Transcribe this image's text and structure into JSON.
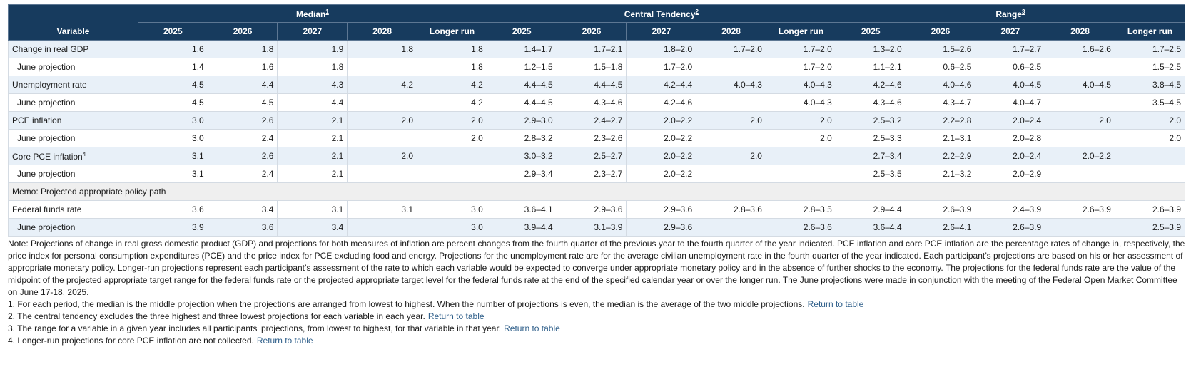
{
  "headers": {
    "variable": "Variable",
    "groups": [
      {
        "label": "Median",
        "note": "1"
      },
      {
        "label": "Central Tendency",
        "note": "2"
      },
      {
        "label": "Range",
        "note": "3"
      }
    ],
    "years": [
      "2025",
      "2026",
      "2027",
      "2028",
      "Longer run"
    ]
  },
  "rows": [
    {
      "label": "Change in real GDP",
      "note": "",
      "cells": [
        "1.6",
        "1.8",
        "1.9",
        "1.8",
        "1.8",
        "1.4–1.7",
        "1.7–2.1",
        "1.8–2.0",
        "1.7–2.0",
        "1.7–2.0",
        "1.3–2.0",
        "1.5–2.6",
        "1.7–2.7",
        "1.6–2.6",
        "1.7–2.5"
      ]
    },
    {
      "label": "June projection",
      "note": "",
      "cells": [
        "1.4",
        "1.6",
        "1.8",
        "",
        "1.8",
        "1.2–1.5",
        "1.5–1.8",
        "1.7–2.0",
        "",
        "1.7–2.0",
        "1.1–2.1",
        "0.6–2.5",
        "0.6–2.5",
        "",
        "1.5–2.5"
      ]
    },
    {
      "label": "Unemployment rate",
      "note": "",
      "cells": [
        "4.5",
        "4.4",
        "4.3",
        "4.2",
        "4.2",
        "4.4–4.5",
        "4.4–4.5",
        "4.2–4.4",
        "4.0–4.3",
        "4.0–4.3",
        "4.2–4.6",
        "4.0–4.6",
        "4.0–4.5",
        "4.0–4.5",
        "3.8–4.5"
      ]
    },
    {
      "label": "June projection",
      "note": "",
      "cells": [
        "4.5",
        "4.5",
        "4.4",
        "",
        "4.2",
        "4.4–4.5",
        "4.3–4.6",
        "4.2–4.6",
        "",
        "4.0–4.3",
        "4.3–4.6",
        "4.3–4.7",
        "4.0–4.7",
        "",
        "3.5–4.5"
      ]
    },
    {
      "label": "PCE inflation",
      "note": "",
      "cells": [
        "3.0",
        "2.6",
        "2.1",
        "2.0",
        "2.0",
        "2.9–3.0",
        "2.4–2.7",
        "2.0–2.2",
        "2.0",
        "2.0",
        "2.5–3.2",
        "2.2–2.8",
        "2.0–2.4",
        "2.0",
        "2.0"
      ]
    },
    {
      "label": "June projection",
      "note": "",
      "cells": [
        "3.0",
        "2.4",
        "2.1",
        "",
        "2.0",
        "2.8–3.2",
        "2.3–2.6",
        "2.0–2.2",
        "",
        "2.0",
        "2.5–3.3",
        "2.1–3.1",
        "2.0–2.8",
        "",
        "2.0"
      ]
    },
    {
      "label": "Core PCE inflation",
      "note": "4",
      "cells": [
        "3.1",
        "2.6",
        "2.1",
        "2.0",
        "",
        "3.0–3.2",
        "2.5–2.7",
        "2.0–2.2",
        "2.0",
        "",
        "2.7–3.4",
        "2.2–2.9",
        "2.0–2.4",
        "2.0–2.2",
        ""
      ]
    },
    {
      "label": "June projection",
      "note": "",
      "cells": [
        "3.1",
        "2.4",
        "2.1",
        "",
        "",
        "2.9–3.4",
        "2.3–2.7",
        "2.0–2.2",
        "",
        "",
        "2.5–3.5",
        "2.1–3.2",
        "2.0–2.9",
        "",
        ""
      ]
    },
    {
      "memo": "Memo: Projected appropriate policy path"
    },
    {
      "label": "Federal funds rate",
      "note": "",
      "cells": [
        "3.6",
        "3.4",
        "3.1",
        "3.1",
        "3.0",
        "3.6–4.1",
        "2.9–3.6",
        "2.9–3.6",
        "2.8–3.6",
        "2.8–3.5",
        "2.9–4.4",
        "2.6–3.9",
        "2.4–3.9",
        "2.6–3.9",
        "2.6–3.9"
      ]
    },
    {
      "label": "June projection",
      "note": "",
      "cells": [
        "3.9",
        "3.6",
        "3.4",
        "",
        "3.0",
        "3.9–4.4",
        "3.1–3.9",
        "2.9–3.6",
        "",
        "2.6–3.6",
        "3.6–4.4",
        "2.6–4.1",
        "2.6–3.9",
        "",
        "2.5–3.9"
      ]
    }
  ],
  "notes": {
    "main": "Note: Projections of change in real gross domestic product (GDP) and projections for both measures of inflation are percent changes from the fourth quarter of the previous year to the fourth quarter of the year indicated. PCE inflation and core PCE inflation are the percentage rates of change in, respectively, the price index for personal consumption expenditures (PCE) and the price index for PCE excluding food and energy. Projections for the unemployment rate are for the average civilian unemployment rate in the fourth quarter of the year indicated. Each participant’s projections are based on his or her assessment of appropriate monetary policy. Longer-run projections represent each participant’s assessment of the rate to which each variable would be expected to converge under appropriate monetary policy and in the absence of further shocks to the economy. The projections for the federal funds rate are the value of the midpoint of the projected appropriate target range for the federal funds rate or the projected appropriate target level for the federal funds rate at the end of the specified calendar year or over the longer run. The June projections were made in conjunction with the meeting of the Federal Open Market Committee on June 17-18, 2025.",
    "footnotes": [
      {
        "text": "1. For each period, the median is the middle projection when the projections are arranged from lowest to highest. When the number of projections is even, the median is the average of the two middle projections.",
        "link": "Return to table"
      },
      {
        "text": "2. The central tendency excludes the three highest and three lowest projections for each variable in each year.",
        "link": "Return to table"
      },
      {
        "text": "3. The range for a variable in a given year includes all participants' projections, from lowest to highest, for that variable in that year.",
        "link": "Return to table"
      },
      {
        "text": "4. Longer-run projections for core PCE inflation are not collected.",
        "link": "Return to table"
      }
    ]
  },
  "colors": {
    "header_bg": "#173b5e",
    "shade_bg": "#e8f0f8",
    "memo_bg": "#efefef",
    "link": "#2f5f8a"
  }
}
